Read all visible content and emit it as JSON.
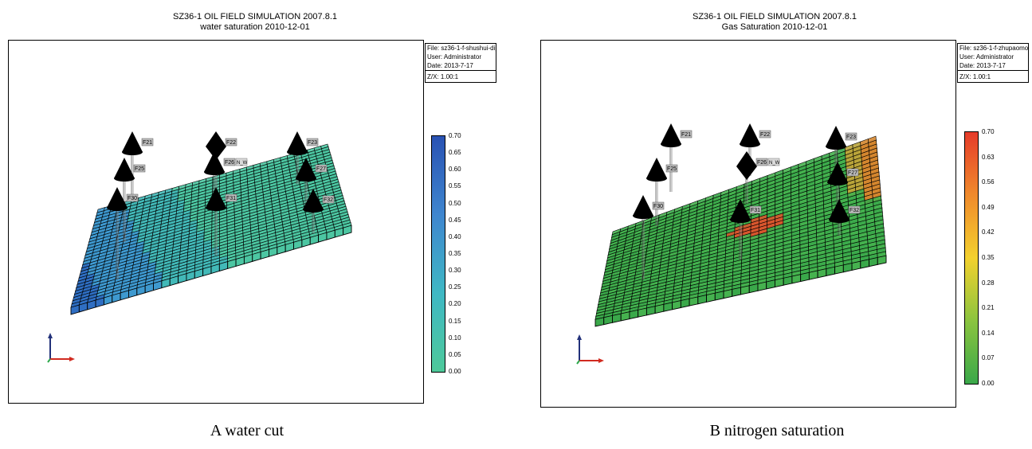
{
  "panels": [
    {
      "id": "a",
      "title": "SZ36-1 OIL FIELD SIMULATION 2007.8.1",
      "subtitle": "water  saturation 2010-12-01",
      "info": {
        "file": "File: sz36-1-f-shushui-dip+1",
        "user": "User:  Administrator",
        "date": "Date: 2013-7-17",
        "zx": "Z/X: 1.00:1"
      },
      "colorbar": {
        "ticks": [
          "0.70",
          "0.65",
          "0.60",
          "0.55",
          "0.50",
          "0.45",
          "0.40",
          "0.35",
          "0.30",
          "0.25",
          "0.20",
          "0.15",
          "0.10",
          "0.05",
          "0.00"
        ],
        "colors": [
          "#2952b3",
          "#3f86cf",
          "#3fb8c4",
          "#4ec99a"
        ]
      },
      "wells": [
        "F21",
        "F22",
        "F23",
        "F25",
        "F26",
        "F27",
        "F30",
        "F31",
        "F32"
      ],
      "well_extra_label": "N_W",
      "caption": "A water cut"
    },
    {
      "id": "b",
      "title": "SZ36-1 OIL FIELD SIMULATION 2007.8.1",
      "subtitle": "Gas Saturation 2010-12-01",
      "info": {
        "file": "File: sz36-1-f-zhupaomo-dip",
        "user": "User:  Administrator",
        "date": "Date: 2013-7-17",
        "zx": "Z/X: 1.00:1"
      },
      "colorbar": {
        "ticks": [
          "0.70",
          "0.63",
          "0.56",
          "0.49",
          "0.42",
          "0.35",
          "0.28",
          "0.21",
          "0.14",
          "0.07",
          "0.00"
        ],
        "colors": [
          "#e53b2a",
          "#f08a2c",
          "#f3d12e",
          "#8bc43f",
          "#3aa84a"
        ]
      },
      "wells": [
        "F21",
        "F22",
        "F23",
        "F25",
        "F26",
        "F27",
        "F30",
        "F31",
        "F32"
      ],
      "well_extra_label": "N_W",
      "caption": "B nitrogen saturation"
    }
  ]
}
